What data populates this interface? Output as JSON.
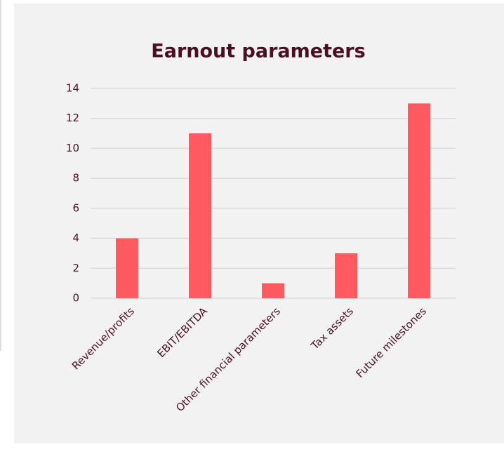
{
  "chart_data": {
    "type": "bar",
    "title": "Earnout parameters",
    "categories": [
      "Revenue/profits",
      "EBIT/EBITDA",
      "Other financial parameters",
      "Tax assets",
      "Future milestones"
    ],
    "values": [
      4,
      11,
      1,
      3,
      13
    ],
    "color": "#ff5a5f",
    "ylim": [
      0,
      14
    ],
    "yticks": [
      0,
      2,
      4,
      6,
      8,
      10,
      12,
      14
    ],
    "grid": true
  }
}
